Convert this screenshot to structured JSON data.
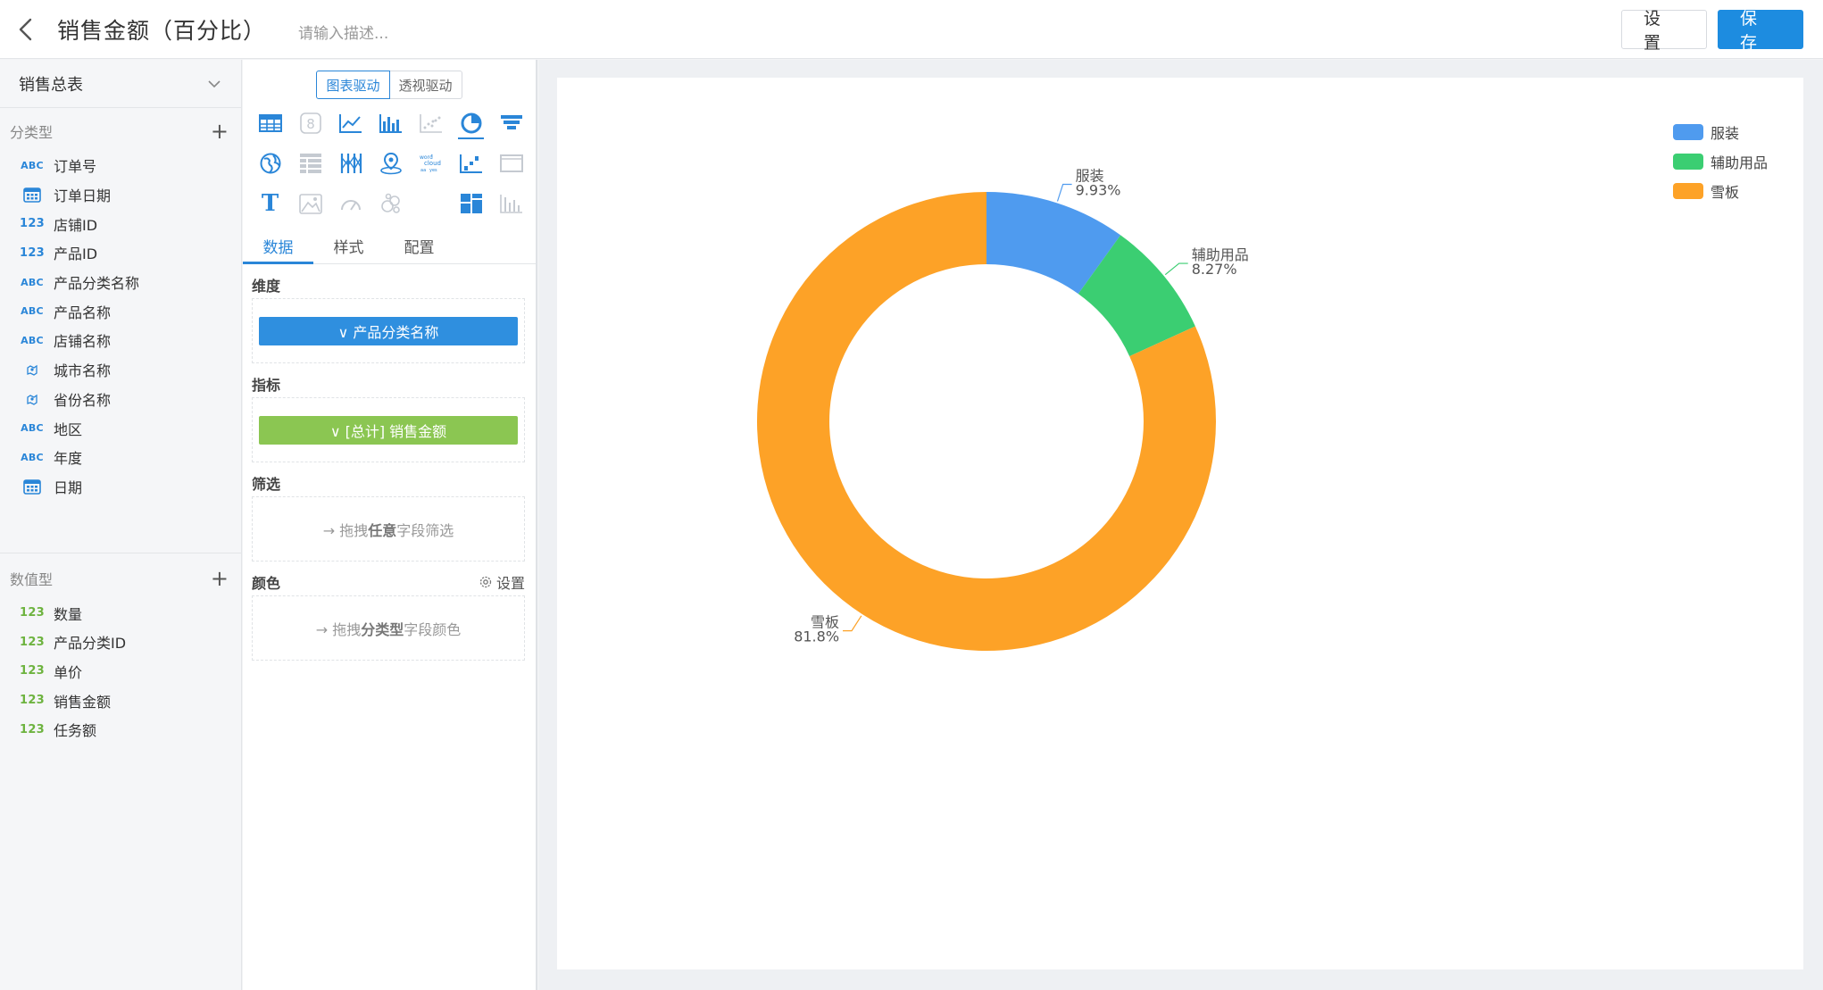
{
  "header": {
    "title": "销售金额（百分比）",
    "desc_placeholder": "请输入描述...",
    "settings_label": "设 置",
    "save_label": "保 存"
  },
  "fields": {
    "table_name": "销售总表",
    "dimension_group": "分类型",
    "dimensions": [
      {
        "type": "ABC",
        "icon": "text-field-icon",
        "label": "订单号"
      },
      {
        "type": "date",
        "icon": "calendar-icon",
        "label": "订单日期"
      },
      {
        "type": "123",
        "icon": "number-field-icon",
        "label": "店铺ID"
      },
      {
        "type": "123",
        "icon": "number-field-icon",
        "label": "产品ID"
      },
      {
        "type": "ABC",
        "icon": "text-field-icon",
        "label": "产品分类名称"
      },
      {
        "type": "ABC",
        "icon": "text-field-icon",
        "label": "产品名称"
      },
      {
        "type": "ABC",
        "icon": "text-field-icon",
        "label": "店铺名称"
      },
      {
        "type": "geo",
        "icon": "geo-field-icon",
        "label": "城市名称"
      },
      {
        "type": "geo",
        "icon": "geo-field-icon",
        "label": "省份名称"
      },
      {
        "type": "ABC",
        "icon": "text-field-icon",
        "label": "地区"
      },
      {
        "type": "ABC",
        "icon": "text-field-icon",
        "label": "年度"
      },
      {
        "type": "date",
        "icon": "calendar-icon",
        "label": "日期"
      }
    ],
    "measure_group": "数值型",
    "measures": [
      {
        "type": "123",
        "label": "数量"
      },
      {
        "type": "123",
        "label": "产品分类ID"
      },
      {
        "type": "123",
        "label": "单价"
      },
      {
        "type": "123",
        "label": "销售金额"
      },
      {
        "type": "123",
        "label": "任务额"
      }
    ]
  },
  "config": {
    "mode_chart": "图表驱动",
    "mode_pivot": "透视驱动",
    "chart_type_icons": [
      "table-icon",
      "kpi-number-icon",
      "line-chart-icon",
      "bar-chart-icon",
      "scatter-chart-icon",
      "pie-chart-icon",
      "funnel-chart-icon",
      "map-icon",
      "pivot-table-icon",
      "parallel-chart-icon",
      "geo-point-icon",
      "word-cloud-icon",
      "step-chart-icon",
      "frame-icon",
      "text-icon",
      "image-icon",
      "gauge-icon",
      "bubble-icon",
      "blank-icon",
      "dashboard-icon",
      "histogram-icon"
    ],
    "selected_chart_type": "pie-chart-icon",
    "tabs": [
      "数据",
      "样式",
      "配置"
    ],
    "active_tab": "数据",
    "dimension_label": "维度",
    "dimension_pill": "∨ 产品分类名称",
    "measure_label": "指标",
    "measure_pill": "∨ [总计] 销售金额",
    "filter_label": "筛选",
    "filter_hint_prefix": "→ 拖拽",
    "filter_hint_bold": "任意",
    "filter_hint_suffix": "字段筛选",
    "color_label": "颜色",
    "color_settings": "设置",
    "color_hint_prefix": "→ 拖拽",
    "color_hint_bold": "分类型",
    "color_hint_suffix": "字段颜色"
  },
  "colors": {
    "primary": "#1d8ce0",
    "series_1": "#4f9bef",
    "series_2": "#3bce72",
    "series_3": "#fda227"
  },
  "chart_data": {
    "type": "pie",
    "style": "donut",
    "legend_position": "top-right",
    "categories": [
      "服装",
      "辅助用品",
      "雪板"
    ],
    "values": [
      9.93,
      8.27,
      81.8
    ],
    "value_labels": [
      "9.93%",
      "8.27%",
      "81.8%"
    ],
    "colors": [
      "#4f9bef",
      "#3bce72",
      "#fda227"
    ]
  }
}
